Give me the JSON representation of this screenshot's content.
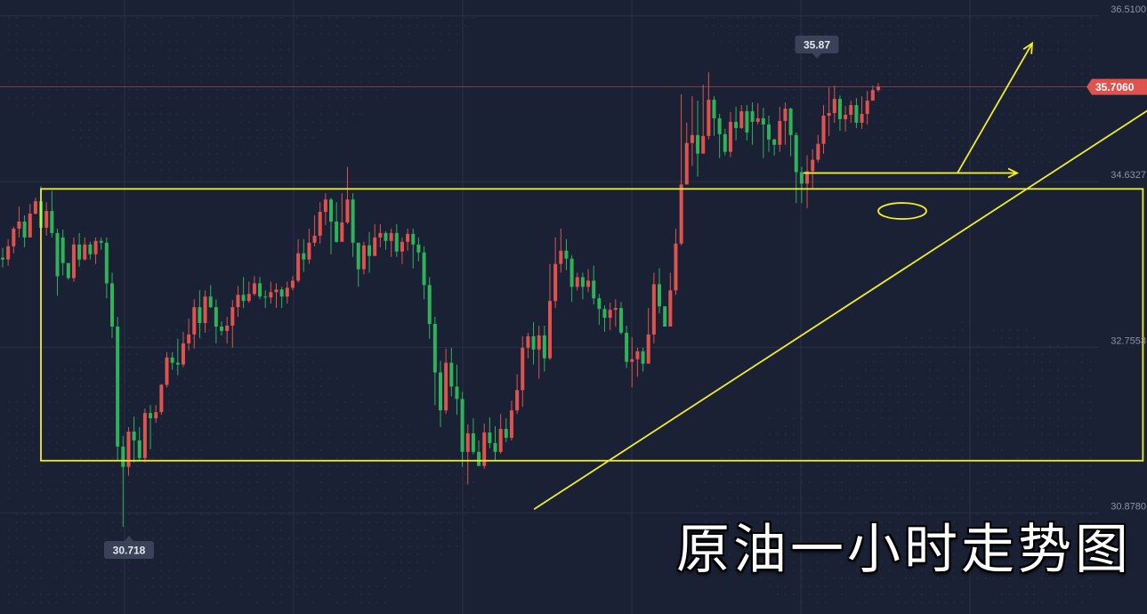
{
  "chart_data": {
    "type": "candlestick",
    "title": "原油一小时走势图",
    "y_ticks": [
      "36.5100",
      "34.6327",
      "32.7553",
      "30.8780"
    ],
    "ylim": [
      30.0,
      36.6
    ],
    "high_marker": "35.87",
    "low_marker": "30.718",
    "last_price": "35.7060",
    "last_price_value": 35.706,
    "colors": {
      "up": "#e0524d",
      "down": "#2eb35a",
      "background": "#1b2134",
      "annotation": "#f2ee26",
      "price_line": "#e0524d",
      "grid": "#2a3147",
      "tick_text": "#8b93a7",
      "marker_box": "#394258"
    },
    "annotations": [
      {
        "type": "range-box",
        "from_candle": 0,
        "to_candle": 176,
        "price_top": 34.55,
        "price_bottom": 31.47
      },
      {
        "type": "trendline",
        "points": [
          [
            30.6,
            30.92
          ],
          [
            176,
            35.45
          ]
        ]
      },
      {
        "type": "horizontal-arrow",
        "from_candle": 126,
        "to_candle": 160,
        "price": 34.73
      },
      {
        "type": "ellipse",
        "candle": 140,
        "price": 34.3
      },
      {
        "type": "arrow",
        "from": [
          151,
          34.73
        ],
        "to": [
          165,
          36.2
        ]
      }
    ],
    "candles": [
      [
        33.77,
        33.75,
        33.88,
        33.66
      ],
      [
        33.75,
        33.9,
        33.98,
        33.68
      ],
      [
        33.9,
        34.1,
        34.12,
        33.82
      ],
      [
        34.1,
        34.18,
        34.35,
        34.0
      ],
      [
        34.18,
        34.0,
        34.25,
        33.89
      ],
      [
        34.0,
        34.27,
        34.38,
        34.02
      ],
      [
        34.27,
        34.41,
        34.45,
        34.26
      ],
      [
        34.41,
        34.11,
        34.58,
        34.0
      ],
      [
        34.11,
        34.3,
        34.4,
        34.02
      ],
      [
        34.3,
        34.05,
        34.53,
        34.0
      ],
      [
        34.05,
        33.56,
        34.1,
        33.34
      ],
      [
        34.0,
        33.71,
        34.09,
        33.57
      ],
      [
        33.71,
        33.54,
        33.7,
        33.52
      ],
      [
        33.54,
        33.92,
        34.0,
        33.5
      ],
      [
        33.92,
        33.75,
        34.05,
        33.67
      ],
      [
        33.75,
        33.92,
        34.0,
        33.74
      ],
      [
        33.92,
        33.81,
        33.95,
        33.75
      ],
      [
        33.81,
        33.96,
        34.0,
        33.7
      ],
      [
        33.96,
        33.94,
        34.0,
        33.86
      ],
      [
        33.94,
        33.48,
        34.0,
        33.31
      ],
      [
        33.48,
        32.99,
        33.6,
        32.86
      ],
      [
        32.99,
        31.63,
        33.1,
        31.47
      ],
      [
        31.63,
        31.4,
        31.75,
        30.72
      ],
      [
        31.4,
        31.8,
        31.85,
        31.3
      ],
      [
        31.8,
        31.7,
        31.97,
        31.45
      ],
      [
        31.7,
        31.5,
        31.85,
        31.47
      ],
      [
        31.5,
        32.01,
        32.06,
        31.45
      ],
      [
        32.01,
        31.95,
        32.1,
        31.6
      ],
      [
        31.95,
        32.02,
        32.1,
        31.9
      ],
      [
        32.02,
        32.33,
        32.34,
        31.99
      ],
      [
        32.33,
        32.64,
        32.7,
        32.3
      ],
      [
        32.64,
        32.58,
        32.7,
        32.5
      ],
      [
        32.58,
        32.56,
        32.85,
        32.44
      ],
      [
        32.56,
        32.8,
        32.93,
        32.53
      ],
      [
        32.8,
        32.9,
        33.08,
        32.72
      ],
      [
        32.9,
        33.21,
        33.3,
        32.74
      ],
      [
        33.21,
        33.03,
        33.4,
        32.86
      ],
      [
        33.03,
        33.33,
        33.4,
        32.92
      ],
      [
        33.33,
        33.21,
        33.46,
        33.2
      ],
      [
        33.21,
        32.99,
        33.3,
        32.8
      ],
      [
        32.99,
        32.94,
        33.05,
        32.89
      ],
      [
        32.94,
        33.0,
        33.1,
        32.8
      ],
      [
        33.0,
        33.21,
        33.29,
        32.75
      ],
      [
        33.21,
        33.35,
        33.45,
        33.1
      ],
      [
        33.35,
        33.28,
        33.55,
        33.2
      ],
      [
        33.28,
        33.36,
        33.5,
        33.26
      ],
      [
        33.36,
        33.48,
        33.56,
        33.34
      ],
      [
        33.48,
        33.33,
        33.55,
        33.3
      ],
      [
        33.33,
        33.32,
        33.4,
        33.2
      ],
      [
        33.32,
        33.38,
        33.5,
        33.25
      ],
      [
        33.38,
        33.41,
        33.48,
        33.2
      ],
      [
        33.41,
        33.33,
        33.44,
        33.2
      ],
      [
        33.33,
        33.43,
        33.5,
        33.25
      ],
      [
        33.43,
        33.51,
        33.56,
        33.4
      ],
      [
        33.51,
        33.82,
        33.98,
        33.49
      ],
      [
        33.82,
        33.75,
        33.98,
        33.61
      ],
      [
        33.75,
        33.94,
        34.1,
        33.7
      ],
      [
        33.94,
        34.02,
        34.25,
        33.9
      ],
      [
        34.02,
        34.29,
        34.4,
        33.93
      ],
      [
        34.29,
        34.43,
        34.5,
        34.14
      ],
      [
        34.43,
        34.18,
        34.45,
        33.81
      ],
      [
        34.18,
        33.95,
        34.4,
        33.94
      ],
      [
        33.95,
        34.17,
        34.5,
        34.0
      ],
      [
        34.17,
        34.43,
        34.8,
        34.15
      ],
      [
        34.43,
        33.94,
        34.5,
        33.78
      ],
      [
        33.94,
        33.64,
        33.9,
        33.44
      ],
      [
        33.64,
        33.91,
        33.95,
        33.58
      ],
      [
        33.91,
        33.79,
        34.06,
        33.6
      ],
      [
        33.79,
        34.0,
        34.15,
        33.92
      ],
      [
        34.0,
        34.05,
        34.15,
        33.89
      ],
      [
        34.05,
        33.96,
        34.07,
        33.86
      ],
      [
        33.96,
        34.05,
        34.1,
        33.78
      ],
      [
        34.05,
        33.84,
        34.15,
        33.78
      ],
      [
        33.84,
        33.95,
        34.0,
        33.7
      ],
      [
        33.95,
        34.04,
        34.1,
        33.85
      ],
      [
        34.04,
        33.92,
        34.1,
        33.65
      ],
      [
        33.92,
        33.83,
        34.0,
        33.73
      ],
      [
        33.83,
        33.46,
        33.9,
        33.3
      ],
      [
        33.46,
        33.02,
        33.55,
        32.85
      ],
      [
        33.02,
        32.47,
        33.1,
        32.1
      ],
      [
        32.47,
        32.04,
        32.6,
        31.85
      ],
      [
        32.04,
        32.58,
        32.74,
        32.0
      ],
      [
        32.58,
        32.31,
        32.75,
        32.2
      ],
      [
        32.31,
        32.17,
        32.56,
        31.99
      ],
      [
        32.17,
        31.57,
        32.25,
        31.4
      ],
      [
        31.57,
        31.78,
        31.88,
        31.2
      ],
      [
        31.78,
        31.57,
        31.95,
        31.54
      ],
      [
        31.57,
        31.41,
        31.7,
        31.44
      ],
      [
        31.41,
        31.79,
        31.89,
        31.38
      ],
      [
        31.79,
        31.67,
        31.96,
        31.61
      ],
      [
        31.67,
        31.57,
        31.86,
        31.47
      ],
      [
        31.57,
        31.83,
        32.0,
        31.55
      ],
      [
        31.83,
        31.73,
        31.95,
        31.68
      ],
      [
        31.73,
        32.04,
        32.15,
        31.7
      ],
      [
        32.04,
        32.27,
        32.45,
        32.0
      ],
      [
        32.27,
        32.75,
        32.88,
        32.08
      ],
      [
        32.75,
        32.88,
        32.92,
        32.63
      ],
      [
        32.88,
        32.73,
        33.04,
        32.56
      ],
      [
        32.73,
        32.89,
        33.0,
        32.4
      ],
      [
        32.89,
        32.63,
        33.0,
        32.48
      ],
      [
        32.63,
        33.28,
        33.7,
        32.61
      ],
      [
        33.28,
        33.7,
        34.0,
        33.2
      ],
      [
        33.7,
        33.85,
        34.1,
        33.6
      ],
      [
        33.85,
        33.76,
        33.98,
        33.63
      ],
      [
        33.76,
        33.44,
        33.8,
        33.27
      ],
      [
        33.44,
        33.55,
        33.6,
        33.4
      ],
      [
        33.55,
        33.44,
        33.6,
        33.3
      ],
      [
        33.44,
        33.51,
        33.64,
        33.38
      ],
      [
        33.51,
        33.31,
        33.68,
        33.24
      ],
      [
        33.31,
        33.19,
        33.36,
        33.01
      ],
      [
        33.19,
        33.09,
        33.23,
        32.93
      ],
      [
        33.09,
        33.18,
        33.26,
        32.95
      ],
      [
        33.18,
        33.2,
        33.3,
        32.99
      ],
      [
        33.2,
        32.92,
        33.27,
        32.9
      ],
      [
        32.92,
        32.59,
        33.0,
        32.52
      ],
      [
        32.59,
        32.62,
        32.87,
        32.3
      ],
      [
        32.62,
        32.71,
        32.75,
        32.42
      ],
      [
        32.71,
        32.57,
        32.75,
        32.48
      ],
      [
        32.57,
        32.9,
        33.2,
        32.67
      ],
      [
        32.9,
        33.47,
        33.6,
        32.8
      ],
      [
        33.47,
        33.22,
        33.65,
        33.14
      ],
      [
        33.22,
        32.99,
        33.22,
        32.99
      ],
      [
        32.99,
        33.4,
        33.6,
        33.0
      ],
      [
        33.4,
        33.93,
        34.1,
        33.35
      ],
      [
        33.93,
        34.6,
        35.62,
        33.91
      ],
      [
        34.6,
        35.07,
        35.3,
        34.77
      ],
      [
        35.07,
        35.16,
        35.6,
        34.81
      ],
      [
        35.16,
        34.95,
        35.55,
        34.69
      ],
      [
        34.95,
        35.15,
        35.73,
        34.97
      ],
      [
        35.15,
        35.56,
        35.87,
        35.11
      ],
      [
        35.56,
        35.35,
        35.6,
        35.15
      ],
      [
        35.35,
        35.17,
        35.4,
        34.9
      ],
      [
        35.17,
        34.97,
        35.23,
        34.93
      ],
      [
        34.97,
        35.31,
        35.42,
        34.91
      ],
      [
        35.31,
        35.24,
        35.48,
        35.1
      ],
      [
        35.24,
        35.43,
        35.5,
        35.23
      ],
      [
        35.43,
        35.19,
        35.5,
        35.1
      ],
      [
        35.43,
        35.31,
        35.53,
        35.05
      ],
      [
        35.31,
        35.35,
        35.52,
        35.28
      ],
      [
        35.35,
        35.28,
        35.47,
        34.9
      ],
      [
        35.28,
        35.11,
        35.38,
        34.97
      ],
      [
        35.11,
        35.05,
        35.12,
        34.93
      ],
      [
        35.05,
        35.32,
        35.48,
        34.97
      ],
      [
        35.32,
        35.46,
        35.53,
        35.05
      ],
      [
        35.46,
        35.16,
        35.47,
        34.92
      ],
      [
        35.16,
        34.74,
        35.19,
        34.39
      ],
      [
        34.74,
        34.61,
        34.8,
        34.39
      ],
      [
        34.61,
        34.75,
        34.93,
        34.33
      ],
      [
        34.75,
        34.88,
        35.0,
        34.56
      ],
      [
        34.88,
        35.06,
        35.16,
        34.85
      ],
      [
        35.06,
        35.38,
        35.5,
        34.95
      ],
      [
        35.38,
        35.41,
        35.7,
        35.15
      ],
      [
        35.41,
        35.57,
        35.72,
        35.3
      ],
      [
        35.57,
        35.34,
        35.61,
        35.21
      ],
      [
        35.34,
        35.39,
        35.49,
        35.2
      ],
      [
        35.39,
        35.5,
        35.55,
        35.3
      ],
      [
        35.5,
        35.3,
        35.58,
        35.24
      ],
      [
        35.3,
        35.4,
        35.6,
        35.23
      ],
      [
        35.4,
        35.55,
        35.66,
        35.28
      ],
      [
        35.55,
        35.67,
        35.72,
        35.58
      ],
      [
        35.67,
        35.71,
        35.75,
        35.65
      ]
    ]
  }
}
